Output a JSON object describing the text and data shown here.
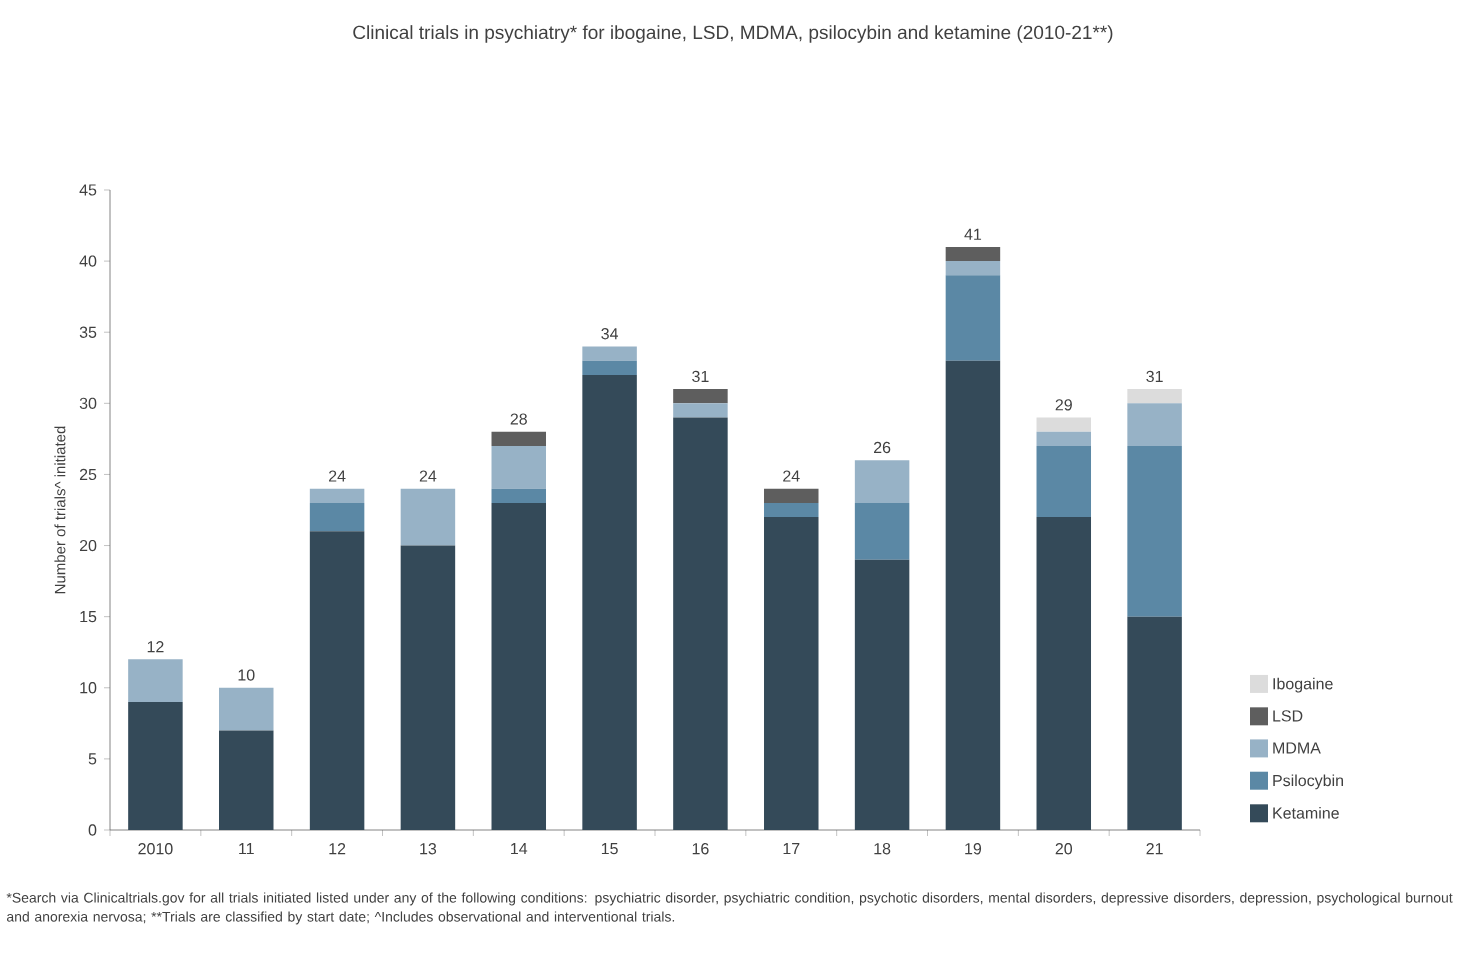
{
  "chart_data": {
    "type": "bar",
    "stacked": true,
    "title": "Clinical trials in psychiatry* for ibogaine, LSD, MDMA, psilocybin and ketamine (2010-21**)",
    "ylabel": "Number of trials^ initiated",
    "categories": [
      "2010",
      "11",
      "12",
      "13",
      "14",
      "15",
      "16",
      "17",
      "18",
      "19",
      "20",
      "21"
    ],
    "series": [
      {
        "name": "Ketamine",
        "color": "#344a59",
        "values": [
          9,
          7,
          21,
          20,
          23,
          32,
          29,
          22,
          19,
          33,
          22,
          15
        ]
      },
      {
        "name": "Psilocybin",
        "color": "#5b88a5",
        "values": [
          0,
          0,
          2,
          0,
          1,
          1,
          0,
          1,
          4,
          6,
          5,
          12
        ]
      },
      {
        "name": "MDMA",
        "color": "#97b2c6",
        "values": [
          3,
          3,
          1,
          4,
          3,
          1,
          1,
          0,
          3,
          1,
          1,
          3
        ]
      },
      {
        "name": "LSD",
        "color": "#5e5e5e",
        "values": [
          0,
          0,
          0,
          0,
          1,
          0,
          1,
          1,
          0,
          1,
          0,
          0
        ]
      },
      {
        "name": "Ibogaine",
        "color": "#dcdcdc",
        "values": [
          0,
          0,
          0,
          0,
          0,
          0,
          0,
          0,
          0,
          0,
          1,
          1
        ]
      }
    ],
    "totals": [
      "12",
      "10",
      "24",
      "24",
      "28",
      "34",
      "31",
      "24",
      "26",
      "41",
      "29",
      "31"
    ],
    "ylim": [
      0,
      45
    ],
    "yticks": [
      0,
      5,
      10,
      15,
      20,
      25,
      30,
      35,
      40,
      45
    ],
    "legend": "bottom right",
    "annotations": [
      "*Search via Clinicaltrials.gov for all trials initiated listed under any of the following conditions: psychiatric disorder, psychiatric condition, psychotic disorders, mental disorders, depressive disorders, depression, psychological burnout and anorexia nervosa; **Trials are classified by start date; ^Includes observational and interventional trials."
    ]
  }
}
